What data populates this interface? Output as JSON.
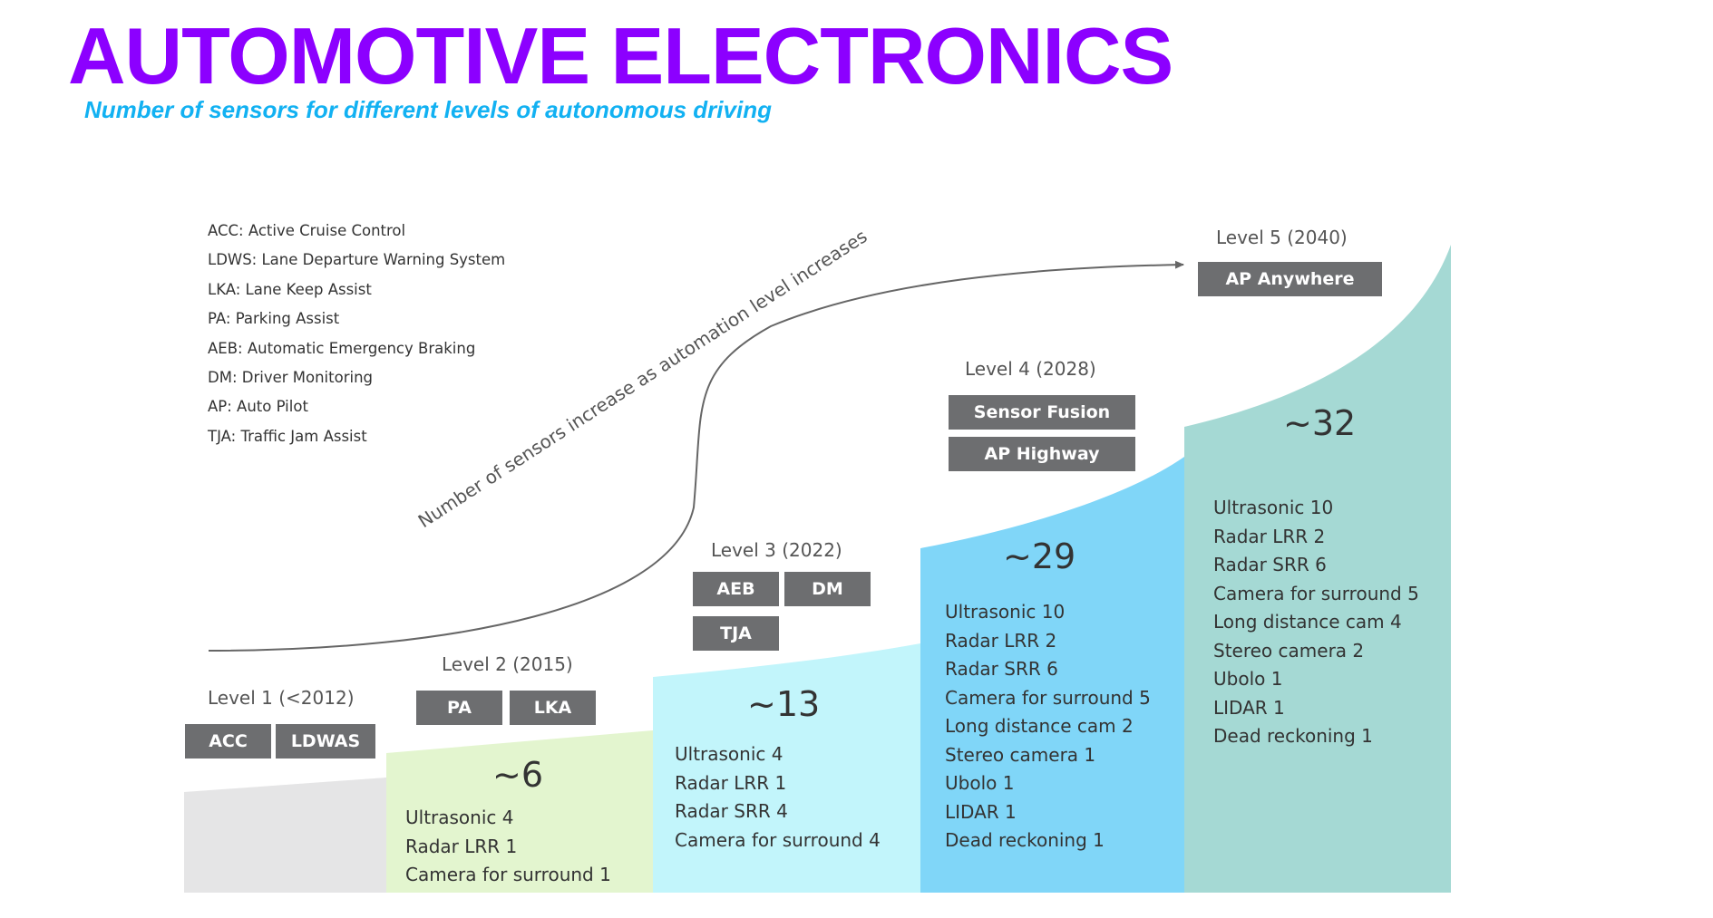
{
  "header": {
    "title": "AUTOMOTIVE ELECTRONICS",
    "subtitle": "Number of sensors for different levels of autonomous driving"
  },
  "legend": [
    "ACC: Active Cruise Control",
    "LDWS: Lane Departure Warning System",
    "LKA: Lane Keep Assist",
    "PA: Parking Assist",
    "AEB: Automatic Emergency Braking",
    "DM: Driver Monitoring",
    "AP: Auto Pilot",
    "TJA: Traffic Jam Assist"
  ],
  "trend_label": "Number of sensors increase as automation level increases",
  "colors": {
    "title": "#8c00ff",
    "subtitle": "#12b1f2",
    "level1": "#e5e5e6",
    "level2": "#e3f5cf",
    "level3": "#c2f5fb",
    "level4": "#80d6f8",
    "level5": "#a5d9d4",
    "chip": "#6d6e70"
  },
  "levels": [
    {
      "label": "Level 1 (<2012)",
      "features": [
        "ACC",
        "LDWAS"
      ],
      "count": "",
      "sensors": []
    },
    {
      "label": "Level 2 (2015)",
      "features": [
        "PA",
        "LKA"
      ],
      "count": "~6",
      "sensors": [
        "Ultrasonic  4",
        "Radar LRR  1",
        "Camera  for surround  1"
      ]
    },
    {
      "label": "Level 3 (2022)",
      "features": [
        "AEB",
        "DM",
        "TJA"
      ],
      "count": "~13",
      "sensors": [
        "Ultrasonic  4",
        "Radar LRR  1",
        "Radar SRR  4",
        "Camera  for surround  4"
      ]
    },
    {
      "label": "Level 4 (2028)",
      "features": [
        "Sensor Fusion",
        "AP Highway"
      ],
      "count": "~29",
      "sensors": [
        "Ultrasonic  10",
        "Radar LRR  2",
        "Radar SRR  6",
        "Camera  for surround  5",
        "Long distance cam 2",
        "Stereo camera  1",
        "Ubolo  1",
        "LIDAR  1",
        "Dead reckoning  1"
      ]
    },
    {
      "label": "Level 5 (2040)",
      "features": [
        "AP Anywhere"
      ],
      "count": "~32",
      "sensors": [
        "Ultrasonic  10",
        "Radar LRR  2",
        "Radar SRR  6",
        "Camera  for surround  5",
        "Long distance cam 4",
        "Stereo camera  2",
        "Ubolo  1",
        "LIDAR  1",
        "Dead reckoning  1"
      ]
    }
  ]
}
